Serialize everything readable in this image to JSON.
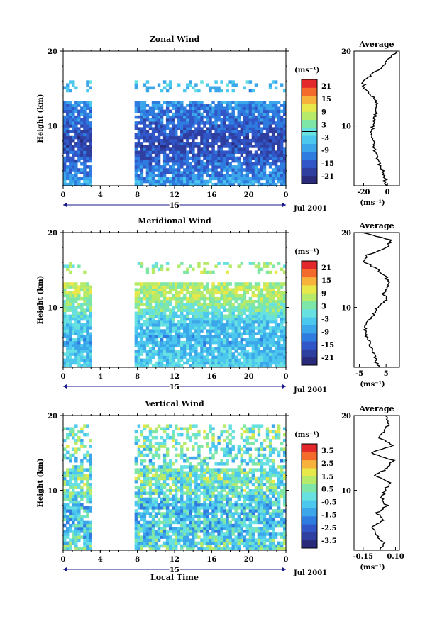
{
  "colors": {
    "scale": [
      "#2a2a7a",
      "#2f3fa0",
      "#3156c8",
      "#2f7ce0",
      "#3ba6ea",
      "#4cc8ee",
      "#66e0e0",
      "#7ee6a6",
      "#b8ea6a",
      "#e8e84a",
      "#f6b23a",
      "#f46a2a",
      "#e2282a"
    ]
  },
  "panels": [
    {
      "id": "zonal",
      "title": "Zonal Wind",
      "ylabel": "Height (km)",
      "y_ticks": [
        "20",
        "10"
      ],
      "x_ticks": [
        "0",
        "4",
        "8",
        "12",
        "16",
        "20",
        "0"
      ],
      "day_label": "15",
      "date_label": "Jul 2001",
      "colorbar_unit": "(ms⁻¹)",
      "colorbar_ticks": [
        "21",
        "15",
        "9",
        "3",
        "-3",
        "-9",
        "-15",
        "-21"
      ],
      "avg_title": "Average",
      "avg_y_ticks": [
        "20",
        "10"
      ],
      "avg_x_ticks": [
        "-20",
        "0"
      ],
      "avg_unit": "(ms⁻¹)"
    },
    {
      "id": "meridional",
      "title": "Meridional Wind",
      "ylabel": "Height (km)",
      "y_ticks": [
        "20",
        "10"
      ],
      "x_ticks": [
        "0",
        "4",
        "8",
        "12",
        "16",
        "20",
        "0"
      ],
      "day_label": "15",
      "date_label": "Jul 2001",
      "colorbar_unit": "(ms⁻¹)",
      "colorbar_ticks": [
        "21",
        "15",
        "9",
        "3",
        "-3",
        "-9",
        "-15",
        "-21"
      ],
      "avg_title": "Average",
      "avg_y_ticks": [
        "20",
        "10"
      ],
      "avg_x_ticks": [
        "-5",
        "5"
      ],
      "avg_unit": "(ms⁻¹)"
    },
    {
      "id": "vertical",
      "title": "Vertical Wind",
      "ylabel": "Height (km)",
      "y_ticks": [
        "20",
        "10"
      ],
      "x_ticks": [
        "0",
        "4",
        "8",
        "12",
        "16",
        "20",
        "0"
      ],
      "day_label": "15",
      "date_label": "Jul 2001",
      "xlabel": "Local Time",
      "colorbar_unit": "(ms⁻¹)",
      "colorbar_ticks": [
        "3.5",
        "2.5",
        "1.5",
        "0.5",
        "-0.5",
        "-1.5",
        "-2.5",
        "-3.5"
      ],
      "avg_title": "Average",
      "avg_y_ticks": [
        "20",
        "10"
      ],
      "avg_x_ticks": [
        "-0.15",
        "0.10"
      ],
      "avg_unit": "(ms⁻¹)"
    }
  ],
  "chart_data": [
    {
      "type": "heatmap",
      "title": "Zonal Wind",
      "ylabel": "Height (km)",
      "xlabel": "",
      "x_range_hours": [
        0,
        24
      ],
      "y_range_km": [
        2,
        20
      ],
      "data_gaps_hours": [
        [
          3,
          7.8
        ]
      ],
      "colorbar": {
        "unit": "(ms⁻¹)",
        "range": [
          -21,
          21
        ]
      },
      "approx_profile": {
        "heights_km": [
          2,
          4,
          6,
          8,
          10,
          12,
          14,
          16,
          18,
          20
        ],
        "values": [
          -6,
          -10,
          -13,
          -15,
          -12,
          -10,
          -6,
          -3,
          -1,
          0
        ]
      },
      "average_profile": {
        "heights_km": [
          2,
          3,
          4,
          5,
          6,
          7,
          8,
          9,
          10,
          11,
          12,
          13,
          14,
          15,
          16,
          17,
          18,
          19,
          20
        ],
        "values": [
          -1,
          -2,
          -4,
          -7,
          -9,
          -11,
          -12,
          -13,
          -12,
          -11,
          -9,
          -8,
          -13,
          -19,
          -21,
          -12,
          -4,
          2,
          8
        ],
        "x_range": [
          -28,
          10
        ]
      }
    },
    {
      "type": "heatmap",
      "title": "Meridional Wind",
      "ylabel": "Height (km)",
      "xlabel": "",
      "x_range_hours": [
        0,
        24
      ],
      "y_range_km": [
        2,
        20
      ],
      "data_gaps_hours": [
        [
          3,
          7.8
        ]
      ],
      "colorbar": {
        "unit": "(ms⁻¹)",
        "range": [
          -21,
          21
        ]
      },
      "approx_profile": {
        "heights_km": [
          2,
          4,
          6,
          8,
          10,
          12,
          14,
          16,
          18,
          20
        ],
        "values": [
          -2,
          -4,
          -5,
          -3,
          3,
          7,
          5,
          4,
          2,
          0
        ]
      },
      "average_profile": {
        "heights_km": [
          2,
          3,
          4,
          5,
          6,
          7,
          8,
          9,
          10,
          11,
          12,
          13,
          14,
          15,
          16,
          17,
          18,
          19,
          20
        ],
        "values": [
          2,
          1,
          0,
          -1,
          -2,
          -3,
          -2,
          0,
          2,
          5,
          4,
          6,
          5,
          2,
          -3,
          -2,
          5,
          7,
          -4
        ],
        "x_range": [
          -7,
          10
        ]
      }
    },
    {
      "type": "heatmap",
      "title": "Vertical Wind",
      "ylabel": "Height (km)",
      "xlabel": "Local Time",
      "x_range_hours": [
        0,
        24
      ],
      "y_range_km": [
        2,
        20
      ],
      "data_gaps_hours": [
        [
          3,
          7.8
        ]
      ],
      "colorbar": {
        "unit": "(ms⁻¹)",
        "range": [
          -3.5,
          3.5
        ]
      },
      "approx_profile": {
        "heights_km": [
          2,
          4,
          6,
          8,
          10,
          12,
          14,
          16,
          18,
          20
        ],
        "values": [
          0,
          -0.3,
          -0.5,
          -0.6,
          0.2,
          0.3,
          -0.2,
          0.3,
          0.4,
          0.1
        ]
      },
      "average_profile": {
        "heights_km": [
          2,
          3,
          4,
          5,
          6,
          7,
          8,
          9,
          10,
          11,
          12,
          13,
          14,
          15,
          16,
          17,
          18,
          19,
          20
        ],
        "values": [
          -0.02,
          0.01,
          -0.05,
          -0.08,
          0.01,
          -0.04,
          0.03,
          -0.01,
          0.02,
          0.05,
          -0.06,
          0.04,
          0.08,
          -0.09,
          0.09,
          -0.03,
          0.02,
          0.05,
          0.02
        ],
        "x_range": [
          -0.22,
          0.13
        ]
      }
    }
  ]
}
